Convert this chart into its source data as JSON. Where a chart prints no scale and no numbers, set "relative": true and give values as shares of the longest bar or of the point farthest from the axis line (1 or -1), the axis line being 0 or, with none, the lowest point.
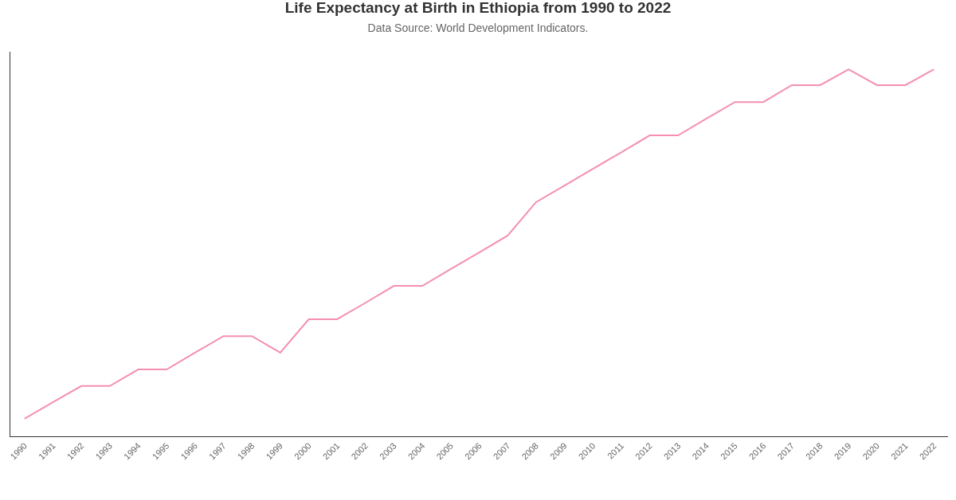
{
  "chart_data": {
    "type": "line",
    "title": "Life Expectancy at Birth in Ethiopia from 1990 to 2022",
    "subtitle": "Data Source: World Development Indicators.",
    "categories": [
      "1990",
      "1991",
      "1992",
      "1993",
      "1994",
      "1995",
      "1996",
      "1997",
      "1998",
      "1999",
      "2000",
      "2001",
      "2002",
      "2003",
      "2004",
      "2005",
      "2006",
      "2007",
      "2008",
      "2009",
      "2010",
      "2011",
      "2012",
      "2013",
      "2014",
      "2015",
      "2016",
      "2017",
      "2018",
      "2019",
      "2020",
      "2021",
      "2022"
    ],
    "relative": true,
    "series": [
      {
        "color": "#f48fb1",
        "values": [
          0.048,
          0.093,
          0.137,
          0.137,
          0.182,
          0.182,
          0.228,
          0.273,
          0.273,
          0.228,
          0.319,
          0.319,
          0.364,
          0.41,
          0.41,
          0.456,
          0.501,
          0.547,
          0.638,
          0.683,
          0.729,
          0.774,
          0.82,
          0.82,
          0.866,
          0.911,
          0.911,
          0.957,
          0.957,
          1,
          0.957,
          0.957,
          1
        ]
      }
    ],
    "marker": "none",
    "line_style": "solid"
  }
}
